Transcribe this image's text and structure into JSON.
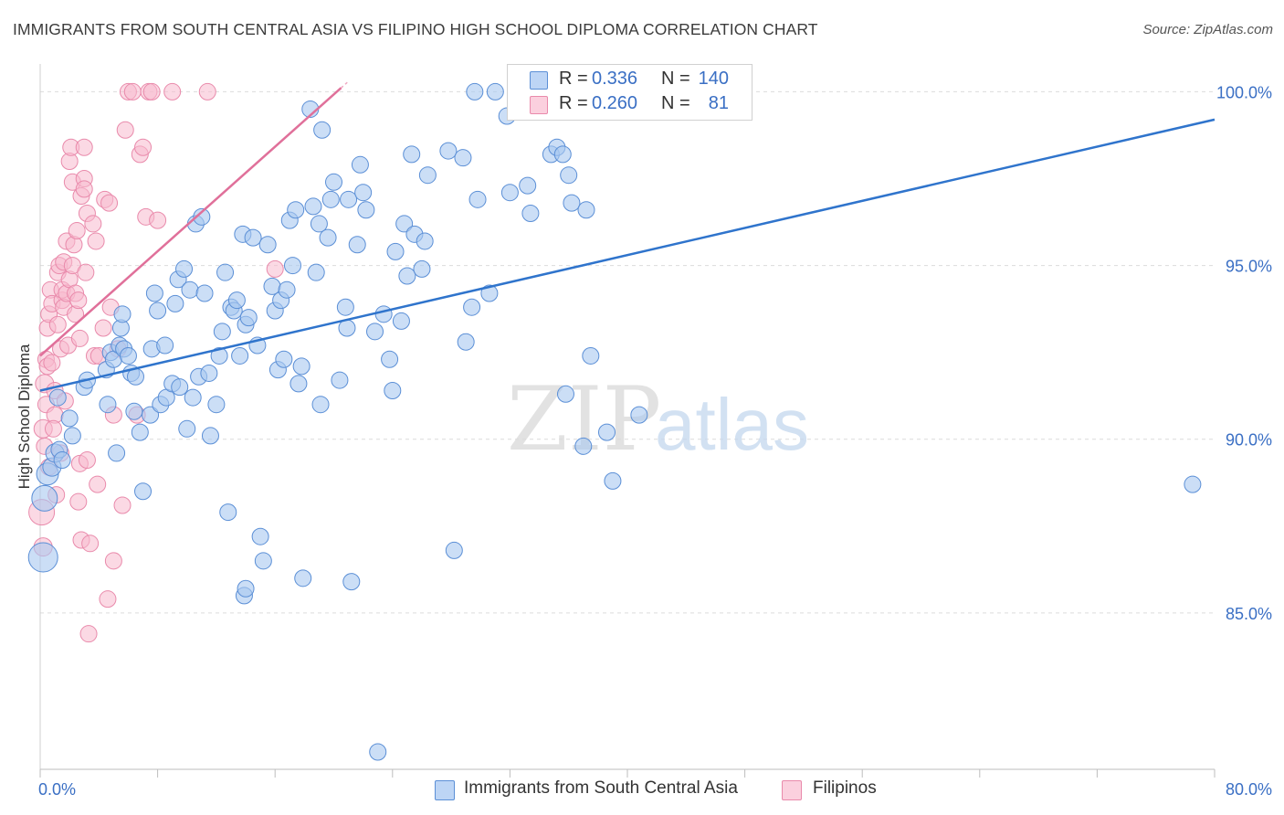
{
  "title": "IMMIGRANTS FROM SOUTH CENTRAL ASIA VS FILIPINO HIGH SCHOOL DIPLOMA CORRELATION CHART",
  "source": "Source: ZipAtlas.com",
  "watermark": {
    "zip": "ZIP",
    "atlas": "atlas"
  },
  "legend": {
    "rows": [
      {
        "r_label": "R =",
        "r_value": "0.336",
        "n_label": "N =",
        "n_value": "140",
        "color": "#a9c8f0"
      },
      {
        "r_label": "R =",
        "r_value": "0.260",
        "n_label": "N =",
        "n_value": "81",
        "color": "#f7b9cd"
      }
    ]
  },
  "bottom_legend": {
    "series_1": "Immigrants from South Central Asia",
    "series_2": "Filipinos"
  },
  "colors": {
    "blue_fill": "#a9c8f0",
    "blue_stroke": "#5b8fd6",
    "blue_line": "#2f74cc",
    "pink_fill": "#f7b9cd",
    "pink_stroke": "#e98aab",
    "pink_line": "#e0709a",
    "axis_label": "#3a6fc4"
  },
  "chart_data": {
    "type": "scatter",
    "ylabel": "High School Diploma",
    "xlim": [
      0,
      80
    ],
    "ylim": [
      80.5,
      100.8
    ],
    "x_tick_labels": [
      "0.0%",
      "80.0%"
    ],
    "y_ticks": [
      {
        "value": 100,
        "label": "100.0%"
      },
      {
        "value": 95,
        "label": "95.0%"
      },
      {
        "value": 90,
        "label": "90.0%"
      },
      {
        "value": 85,
        "label": "85.0%"
      }
    ],
    "series": [
      {
        "name": "Immigrants from South Central Asia",
        "trend": {
          "x": [
            0,
            80
          ],
          "y": [
            91.4,
            99.2
          ]
        },
        "points": [
          [
            0.2,
            86.6,
            16
          ],
          [
            0.3,
            88.3,
            14
          ],
          [
            0.5,
            89.0,
            12
          ],
          [
            0.8,
            89.2,
            10
          ],
          [
            1.0,
            89.6,
            10
          ],
          [
            1.3,
            89.7,
            9
          ],
          [
            1.5,
            89.4,
            9
          ],
          [
            1.2,
            91.2,
            9
          ],
          [
            2.0,
            90.6,
            9
          ],
          [
            2.2,
            90.1,
            9
          ],
          [
            3.0,
            91.5,
            9
          ],
          [
            3.2,
            91.7,
            9
          ],
          [
            4.5,
            92.0,
            9
          ],
          [
            4.8,
            92.5,
            9
          ],
          [
            5.0,
            92.3,
            9
          ],
          [
            4.6,
            91.0,
            9
          ],
          [
            5.2,
            89.6,
            9
          ],
          [
            5.5,
            93.2,
            9
          ],
          [
            5.4,
            92.7,
            9
          ],
          [
            5.7,
            92.6,
            9
          ],
          [
            6.0,
            92.4,
            9
          ],
          [
            5.6,
            93.6,
            9
          ],
          [
            6.2,
            91.9,
            9
          ],
          [
            6.5,
            91.8,
            9
          ],
          [
            6.4,
            90.8,
            9
          ],
          [
            6.8,
            90.2,
            9
          ],
          [
            7.0,
            88.5,
            9
          ],
          [
            7.5,
            90.7,
            9
          ],
          [
            7.6,
            92.6,
            9
          ],
          [
            7.8,
            94.2,
            9
          ],
          [
            8.0,
            93.7,
            9
          ],
          [
            8.2,
            91.0,
            9
          ],
          [
            8.5,
            92.7,
            9
          ],
          [
            8.6,
            91.2,
            9
          ],
          [
            9.0,
            91.6,
            9
          ],
          [
            9.2,
            93.9,
            9
          ],
          [
            9.4,
            94.6,
            9
          ],
          [
            9.5,
            91.5,
            9
          ],
          [
            9.8,
            94.9,
            9
          ],
          [
            10.0,
            90.3,
            9
          ],
          [
            10.2,
            94.3,
            9
          ],
          [
            10.4,
            91.2,
            9
          ],
          [
            10.6,
            96.2,
            9
          ],
          [
            10.8,
            91.8,
            9
          ],
          [
            11.0,
            96.4,
            9
          ],
          [
            11.2,
            94.2,
            9
          ],
          [
            11.5,
            91.9,
            9
          ],
          [
            11.6,
            90.1,
            9
          ],
          [
            12.0,
            91.0,
            9
          ],
          [
            12.2,
            92.4,
            9
          ],
          [
            12.4,
            93.1,
            9
          ],
          [
            12.6,
            94.8,
            9
          ],
          [
            12.8,
            87.9,
            9
          ],
          [
            13.0,
            93.8,
            9
          ],
          [
            13.2,
            93.7,
            9
          ],
          [
            13.4,
            94.0,
            9
          ],
          [
            13.6,
            92.4,
            9
          ],
          [
            13.8,
            95.9,
            9
          ],
          [
            14.0,
            93.3,
            9
          ],
          [
            14.2,
            93.5,
            9
          ],
          [
            13.9,
            85.5,
            9
          ],
          [
            14.0,
            85.7,
            9
          ],
          [
            14.5,
            95.8,
            9
          ],
          [
            14.8,
            92.7,
            9
          ],
          [
            15.0,
            87.2,
            9
          ],
          [
            15.2,
            86.5,
            9
          ],
          [
            15.5,
            95.6,
            9
          ],
          [
            15.8,
            94.4,
            9
          ],
          [
            16.0,
            93.7,
            9
          ],
          [
            16.2,
            92.0,
            9
          ],
          [
            16.4,
            94.0,
            9
          ],
          [
            16.6,
            92.3,
            9
          ],
          [
            16.8,
            94.3,
            9
          ],
          [
            17.0,
            96.3,
            9
          ],
          [
            17.2,
            95.0,
            9
          ],
          [
            17.4,
            96.6,
            9
          ],
          [
            17.6,
            91.6,
            9
          ],
          [
            17.8,
            92.1,
            9
          ],
          [
            17.9,
            86.0,
            9
          ],
          [
            18.4,
            99.5,
            9
          ],
          [
            18.6,
            96.7,
            9
          ],
          [
            18.8,
            94.8,
            9
          ],
          [
            19.0,
            96.2,
            9
          ],
          [
            19.1,
            91.0,
            9
          ],
          [
            19.2,
            98.9,
            9
          ],
          [
            19.6,
            95.8,
            9
          ],
          [
            19.8,
            96.9,
            9
          ],
          [
            20.0,
            97.4,
            9
          ],
          [
            20.4,
            91.7,
            9
          ],
          [
            20.8,
            93.8,
            9
          ],
          [
            20.9,
            93.2,
            9
          ],
          [
            21.0,
            96.9,
            9
          ],
          [
            21.2,
            85.9,
            9
          ],
          [
            21.6,
            95.6,
            9
          ],
          [
            21.8,
            97.9,
            9
          ],
          [
            22.0,
            97.1,
            9
          ],
          [
            22.2,
            96.6,
            9
          ],
          [
            22.8,
            93.1,
            9
          ],
          [
            23.0,
            81.0,
            9
          ],
          [
            23.4,
            93.6,
            9
          ],
          [
            23.8,
            92.3,
            9
          ],
          [
            24.0,
            91.4,
            9
          ],
          [
            24.2,
            95.4,
            9
          ],
          [
            24.6,
            93.4,
            9
          ],
          [
            24.8,
            96.2,
            9
          ],
          [
            25.0,
            94.7,
            9
          ],
          [
            25.3,
            98.2,
            9
          ],
          [
            25.5,
            95.9,
            9
          ],
          [
            26.0,
            94.9,
            9
          ],
          [
            26.2,
            95.7,
            9
          ],
          [
            26.4,
            97.6,
            9
          ],
          [
            27.8,
            98.3,
            9
          ],
          [
            28.2,
            86.8,
            9
          ],
          [
            28.8,
            98.1,
            9
          ],
          [
            29.0,
            92.8,
            9
          ],
          [
            29.4,
            93.8,
            9
          ],
          [
            29.6,
            100.0,
            9
          ],
          [
            29.8,
            96.9,
            9
          ],
          [
            30.6,
            94.2,
            9
          ],
          [
            31.0,
            100.0,
            9
          ],
          [
            31.8,
            99.3,
            9
          ],
          [
            32.0,
            97.1,
            9
          ],
          [
            33.2,
            97.3,
            9
          ],
          [
            33.4,
            96.5,
            9
          ],
          [
            34.8,
            98.2,
            9
          ],
          [
            35.2,
            98.4,
            9
          ],
          [
            35.6,
            98.2,
            9
          ],
          [
            35.8,
            91.3,
            9
          ],
          [
            36.0,
            97.6,
            9
          ],
          [
            36.2,
            96.8,
            9
          ],
          [
            37.0,
            89.8,
            9
          ],
          [
            37.2,
            96.6,
            9
          ],
          [
            37.5,
            92.4,
            9
          ],
          [
            38.6,
            90.2,
            9
          ],
          [
            39.0,
            88.8,
            9
          ],
          [
            40.8,
            90.7,
            9
          ],
          [
            78.5,
            88.7,
            9
          ]
        ]
      },
      {
        "name": "Filipinos",
        "trend": {
          "x": [
            0,
            21
          ],
          "y": [
            92.4,
            100.3
          ]
        },
        "points": [
          [
            0.1,
            87.9,
            14
          ],
          [
            0.2,
            86.9,
            10
          ],
          [
            0.2,
            90.3,
            10
          ],
          [
            0.3,
            91.6,
            10
          ],
          [
            0.4,
            91.0,
            9
          ],
          [
            0.4,
            92.3,
            9
          ],
          [
            0.5,
            93.2,
            9
          ],
          [
            0.5,
            92.1,
            9
          ],
          [
            0.6,
            93.6,
            9
          ],
          [
            0.7,
            94.3,
            9
          ],
          [
            0.8,
            92.2,
            9
          ],
          [
            0.8,
            93.9,
            9
          ],
          [
            1.0,
            91.4,
            9
          ],
          [
            1.0,
            90.7,
            9
          ],
          [
            1.2,
            93.3,
            9
          ],
          [
            1.2,
            94.8,
            9
          ],
          [
            1.3,
            95.0,
            9
          ],
          [
            1.4,
            92.6,
            9
          ],
          [
            1.5,
            94.0,
            9
          ],
          [
            1.5,
            94.3,
            9
          ],
          [
            1.6,
            95.1,
            9
          ],
          [
            1.6,
            93.8,
            9
          ],
          [
            1.8,
            94.2,
            9
          ],
          [
            1.8,
            95.7,
            9
          ],
          [
            1.9,
            92.7,
            9
          ],
          [
            2.0,
            94.6,
            9
          ],
          [
            2.0,
            98.0,
            9
          ],
          [
            2.1,
            98.4,
            9
          ],
          [
            2.2,
            97.4,
            9
          ],
          [
            2.2,
            95.0,
            9
          ],
          [
            2.3,
            95.6,
            9
          ],
          [
            2.4,
            93.6,
            9
          ],
          [
            2.4,
            94.2,
            9
          ],
          [
            2.5,
            96.0,
            9
          ],
          [
            2.6,
            94.0,
            9
          ],
          [
            2.7,
            92.9,
            9
          ],
          [
            2.7,
            89.3,
            9
          ],
          [
            2.8,
            97.0,
            9
          ],
          [
            2.8,
            87.1,
            9
          ],
          [
            3.0,
            97.5,
            9
          ],
          [
            3.0,
            97.2,
            9
          ],
          [
            3.0,
            98.4,
            9
          ],
          [
            3.1,
            94.8,
            9
          ],
          [
            3.2,
            96.5,
            9
          ],
          [
            3.2,
            89.4,
            9
          ],
          [
            3.3,
            84.4,
            9
          ],
          [
            3.4,
            87.0,
            9
          ],
          [
            3.6,
            96.2,
            9
          ],
          [
            3.7,
            92.4,
            9
          ],
          [
            3.8,
            95.7,
            9
          ],
          [
            3.9,
            88.7,
            9
          ],
          [
            4.0,
            92.4,
            9
          ],
          [
            4.3,
            93.2,
            9
          ],
          [
            4.4,
            96.9,
            9
          ],
          [
            4.6,
            85.4,
            9
          ],
          [
            4.7,
            96.8,
            9
          ],
          [
            4.8,
            93.8,
            9
          ],
          [
            5.0,
            86.5,
            9
          ],
          [
            5.0,
            90.7,
            9
          ],
          [
            5.3,
            92.6,
            9
          ],
          [
            5.6,
            88.1,
            9
          ],
          [
            5.8,
            98.9,
            9
          ],
          [
            6.0,
            100.0,
            9
          ],
          [
            6.3,
            100.0,
            9
          ],
          [
            6.6,
            90.7,
            9
          ],
          [
            6.8,
            98.2,
            9
          ],
          [
            7.0,
            98.4,
            9
          ],
          [
            7.2,
            96.4,
            9
          ],
          [
            7.4,
            100.0,
            9
          ],
          [
            7.6,
            100.0,
            9
          ],
          [
            8.0,
            96.3,
            9
          ],
          [
            9.0,
            100.0,
            9
          ],
          [
            11.4,
            100.0,
            9
          ],
          [
            16.0,
            94.9,
            9
          ],
          [
            0.3,
            89.8,
            9
          ],
          [
            0.6,
            89.2,
            9
          ],
          [
            1.1,
            88.4,
            9
          ],
          [
            1.4,
            89.6,
            9
          ],
          [
            2.6,
            88.2,
            9
          ],
          [
            0.9,
            90.3,
            9
          ],
          [
            1.7,
            91.1,
            9
          ]
        ]
      }
    ]
  }
}
